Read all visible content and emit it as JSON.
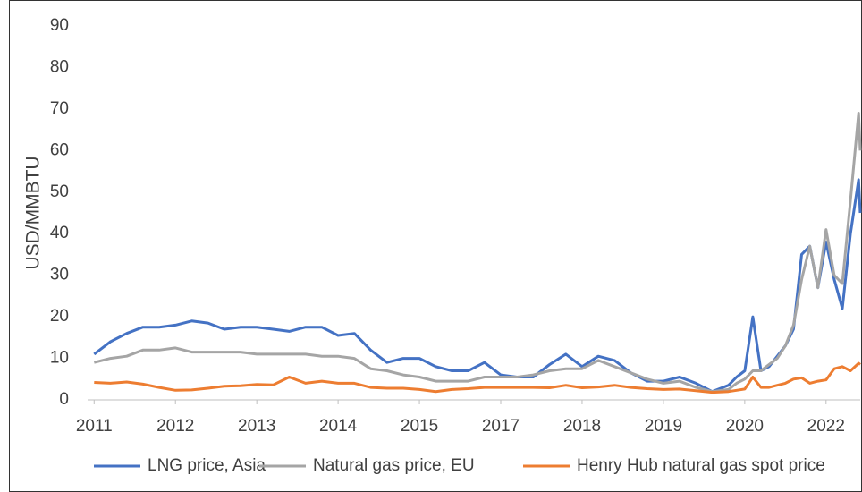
{
  "chart_data": {
    "type": "line",
    "y_label": "USD/MMBTU",
    "x": [
      0,
      0.2,
      0.4,
      0.6,
      0.8,
      1,
      1.2,
      1.4,
      1.6,
      1.8,
      2,
      2.2,
      2.4,
      2.6,
      2.8,
      3,
      3.2,
      3.4,
      3.6,
      3.8,
      4,
      4.2,
      4.4,
      4.6,
      4.8,
      5,
      5.2,
      5.4,
      5.6,
      5.8,
      6,
      6.2,
      6.4,
      6.6,
      6.8,
      7,
      7.2,
      7.4,
      7.6,
      7.8,
      7.9,
      8,
      8.1,
      8.2,
      8.3,
      8.4,
      8.5,
      8.6,
      8.7,
      8.8,
      8.9,
      9,
      9.1,
      9.2,
      9.3,
      9.4,
      9.42
    ],
    "series": [
      {
        "name": "LNG price, Asia",
        "color": "#4472c4",
        "values": [
          11,
          14,
          16,
          17.5,
          17.5,
          18,
          19,
          18.5,
          17,
          17.5,
          17.5,
          17,
          16.5,
          17.5,
          17.5,
          15.5,
          16,
          12,
          9,
          10,
          10,
          8,
          7,
          7,
          9,
          6,
          5.5,
          5.5,
          8.5,
          11,
          8,
          10.5,
          9.5,
          6.5,
          4.5,
          4.5,
          5.5,
          4,
          2,
          3.5,
          5.5,
          7,
          20,
          7,
          8,
          10.5,
          13,
          17,
          35,
          37,
          27,
          38,
          29,
          22,
          40,
          53,
          45
        ]
      },
      {
        "name": "Natural gas price, EU",
        "color": "#a5a5a5",
        "values": [
          9,
          10,
          10.5,
          12,
          12,
          12.5,
          11.5,
          11.5,
          11.5,
          11.5,
          11,
          11,
          11,
          11,
          10.5,
          10.5,
          10,
          7.5,
          7,
          6,
          5.5,
          4.5,
          4.5,
          4.5,
          5.5,
          5.5,
          5.5,
          6,
          7,
          7.5,
          7.5,
          9.5,
          8,
          6.5,
          5,
          4,
          4.5,
          3,
          2,
          2.5,
          4,
          5,
          7,
          7,
          8.5,
          10,
          13,
          18,
          29,
          37,
          27,
          41,
          30,
          28,
          48,
          69,
          60
        ]
      },
      {
        "name": "Henry Hub natural gas spot price",
        "color": "#ed7d31",
        "values": [
          4.2,
          4,
          4.3,
          3.8,
          3,
          2.3,
          2.4,
          2.8,
          3.3,
          3.4,
          3.7,
          3.6,
          5.5,
          4,
          4.5,
          4,
          4,
          3,
          2.8,
          2.8,
          2.5,
          2,
          2.5,
          2.7,
          3,
          3,
          3,
          3,
          2.9,
          3.5,
          2.9,
          3.1,
          3.5,
          3,
          2.7,
          2.5,
          2.6,
          2.2,
          1.8,
          2,
          2.3,
          2.6,
          5.5,
          3,
          3,
          3.5,
          4,
          5,
          5.3,
          4,
          4.5,
          4.8,
          7.5,
          8,
          7,
          8.8,
          8.5
        ]
      }
    ],
    "xlim": [
      -0.08,
      9.42
    ],
    "xticks": [
      {
        "value": 0,
        "label": "2011"
      },
      {
        "value": 1,
        "label": "2012"
      },
      {
        "value": 2,
        "label": "2013"
      },
      {
        "value": 3,
        "label": "2014"
      },
      {
        "value": 4,
        "label": "2015"
      },
      {
        "value": 5,
        "label": "2017"
      },
      {
        "value": 6,
        "label": "2018"
      },
      {
        "value": 7,
        "label": "2019"
      },
      {
        "value": 8,
        "label": "2020"
      },
      {
        "value": 9,
        "label": "2022"
      }
    ],
    "ylim": [
      0,
      90
    ],
    "yticks": [
      0,
      10,
      20,
      30,
      40,
      50,
      60,
      70,
      80,
      90
    ],
    "grid": false,
    "legend": "bottom"
  }
}
